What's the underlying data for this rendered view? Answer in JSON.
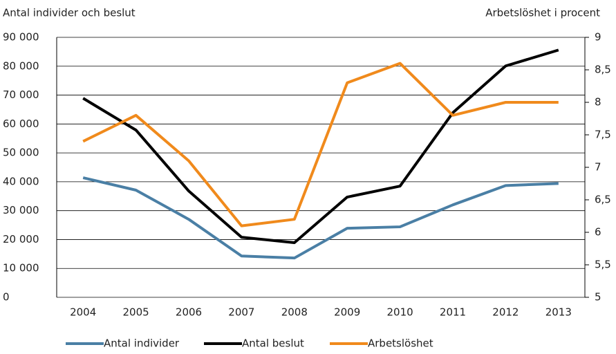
{
  "chart_data": {
    "type": "line",
    "y_axis_title": "Antal individer och beslut",
    "y2_axis_title": "Arbetslöshet i procent",
    "categories": [
      "2004",
      "2005",
      "2006",
      "2007",
      "2008",
      "2009",
      "2010",
      "2011",
      "2012",
      "2013"
    ],
    "series": [
      {
        "name": "Antal individer",
        "color": "#4a7fa5",
        "values": [
          41400,
          37100,
          27000,
          14300,
          13600,
          23900,
          24400,
          32000,
          38700,
          39400
        ]
      },
      {
        "name": "Antal beslut",
        "color": "#000000",
        "values": [
          68900,
          57900,
          36800,
          20800,
          18900,
          34700,
          38500,
          63900,
          80100,
          85600
        ]
      },
      {
        "name": "Arbetslöshet",
        "color": "#f08a1c",
        "axis": "y2",
        "values": [
          7.4,
          7.8,
          7.1,
          6.1,
          6.2,
          8.3,
          8.6,
          7.8,
          8.0,
          8.0
        ]
      }
    ],
    "ylim": [
      0,
      90000
    ],
    "yticks": [
      0,
      {
        "value": 10000,
        "label": "10 000"
      },
      {
        "value": 20000,
        "label": "20 000"
      },
      {
        "value": 30000,
        "label": "30 000"
      },
      {
        "value": 40000,
        "label": "40 000"
      },
      {
        "value": 50000,
        "label": "50 000"
      },
      {
        "value": 60000,
        "label": "60 000"
      },
      {
        "value": 70000,
        "label": "70 000"
      },
      {
        "value": 80000,
        "label": "80 000"
      },
      {
        "value": 90000,
        "label": "90 000"
      }
    ],
    "y2lim": [
      5,
      9
    ],
    "y2ticks": [
      5,
      {
        "value": 5.5,
        "label": "5,5"
      },
      6,
      {
        "value": 6.5,
        "label": "6,5"
      },
      7,
      {
        "value": 7.5,
        "label": "7,5"
      },
      8,
      {
        "value": 8.5,
        "label": "8,5"
      },
      9
    ],
    "grid": true,
    "legend": "bottom"
  }
}
